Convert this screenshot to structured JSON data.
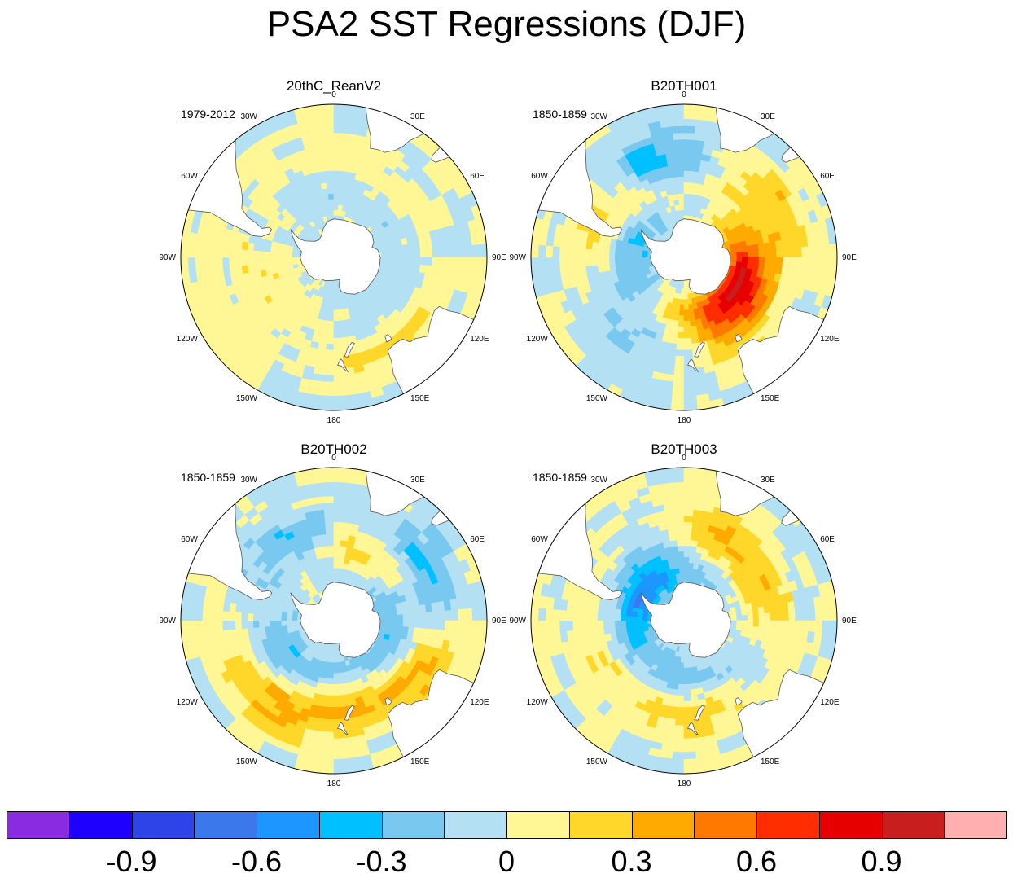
{
  "figure": {
    "title": "PSA2 SST Regressions (DJF)"
  },
  "colors": {
    "levels": [
      "#8a2be2",
      "#1e00ff",
      "#2e44e8",
      "#3a78ec",
      "#1e96ff",
      "#00c0ff",
      "#78c8f0",
      "#b4e0f4",
      "#fff796",
      "#ffd72a",
      "#ffaa00",
      "#ff7800",
      "#ff2d00",
      "#e60000",
      "#c81e1e",
      "#ffafaf"
    ],
    "land": "#ffffff",
    "coast": "#555555"
  },
  "colorbar": {
    "tick_labels": [
      "-0.9",
      "-0.6",
      "-0.3",
      "0",
      "0.3",
      "0.6",
      "0.9"
    ],
    "tick_values": [
      -0.9,
      -0.6,
      -0.3,
      0,
      0.3,
      0.6,
      0.9
    ],
    "bin_edges": [
      -1.05,
      -0.9,
      -0.75,
      -0.6,
      -0.45,
      -0.3,
      -0.15,
      0,
      0.15,
      0.3,
      0.45,
      0.6,
      0.75,
      0.9,
      1.05
    ]
  },
  "longitude_labels": [
    {
      "lon": 0,
      "text": "0"
    },
    {
      "lon": 30,
      "text": "30E"
    },
    {
      "lon": 60,
      "text": "60E"
    },
    {
      "lon": 90,
      "text": "90E"
    },
    {
      "lon": 120,
      "text": "120E"
    },
    {
      "lon": 150,
      "text": "150E"
    },
    {
      "lon": 180,
      "text": "180"
    },
    {
      "lon": -150,
      "text": "150W"
    },
    {
      "lon": -120,
      "text": "120W"
    },
    {
      "lon": -90,
      "text": "90W"
    },
    {
      "lon": -60,
      "text": "60W"
    },
    {
      "lon": -30,
      "text": "30W"
    }
  ],
  "chart_data": [
    {
      "type": "heatmap",
      "projection": "south-polar-stereographic",
      "title": "20thC_ReanV2",
      "period": "1979-2012",
      "variable": "SST regression on PSA2 index",
      "field": [
        {
          "lon": -100,
          "lat": -45,
          "value": 0.1
        },
        {
          "lon": -130,
          "lat": -55,
          "value": 0.1
        },
        {
          "lon": -20,
          "lat": -45,
          "value": 0.1
        },
        {
          "lon": 40,
          "lat": -45,
          "value": 0.1
        },
        {
          "lon": 10,
          "lat": -55,
          "value": -0.1
        },
        {
          "lon": 80,
          "lat": -55,
          "value": -0.1
        },
        {
          "lon": 150,
          "lat": -40,
          "value": 0.2
        },
        {
          "lon": 170,
          "lat": -55,
          "value": -0.1
        },
        {
          "lon": -40,
          "lat": -50,
          "value": -0.1
        }
      ]
    },
    {
      "type": "heatmap",
      "projection": "south-polar-stereographic",
      "title": "B20TH001",
      "period": "1850-1859",
      "variable": "SST regression on PSA2 index",
      "field": [
        {
          "lon": -20,
          "lat": -40,
          "value": -0.4
        },
        {
          "lon": 60,
          "lat": -40,
          "value": 0.3
        },
        {
          "lon": 100,
          "lat": -55,
          "value": 0.3
        },
        {
          "lon": 130,
          "lat": -60,
          "value": 0.7
        },
        {
          "lon": 155,
          "lat": -45,
          "value": 0.4
        },
        {
          "lon": -150,
          "lat": -40,
          "value": -0.1
        },
        {
          "lon": -110,
          "lat": -50,
          "value": -0.1
        },
        {
          "lon": -65,
          "lat": -45,
          "value": 0.3
        },
        {
          "lon": -90,
          "lat": -65,
          "value": -0.3
        },
        {
          "lon": 180,
          "lat": -45,
          "value": -0.2
        }
      ]
    },
    {
      "type": "heatmap",
      "projection": "south-polar-stereographic",
      "title": "B20TH002",
      "period": "1850-1859",
      "variable": "SST regression on PSA2 index",
      "field": [
        {
          "lon": -140,
          "lat": -40,
          "value": 0.35
        },
        {
          "lon": 60,
          "lat": -40,
          "value": -0.4
        },
        {
          "lon": 30,
          "lat": -50,
          "value": 0.3
        },
        {
          "lon": -30,
          "lat": -45,
          "value": -0.3
        },
        {
          "lon": -120,
          "lat": -60,
          "value": -0.3
        },
        {
          "lon": 170,
          "lat": -45,
          "value": 0.2
        },
        {
          "lon": 100,
          "lat": -60,
          "value": -0.3
        },
        {
          "lon": 120,
          "lat": -40,
          "value": 0.3
        }
      ]
    },
    {
      "type": "heatmap",
      "projection": "south-polar-stereographic",
      "title": "B20TH003",
      "period": "1850-1859",
      "variable": "SST regression on PSA2 index",
      "field": [
        {
          "lon": 175,
          "lat": -45,
          "value": 0.3
        },
        {
          "lon": -60,
          "lat": -65,
          "value": -0.5
        },
        {
          "lon": 80,
          "lat": -50,
          "value": 0.2
        },
        {
          "lon": -120,
          "lat": -50,
          "value": 0.2
        },
        {
          "lon": -150,
          "lat": -55,
          "value": -0.3
        },
        {
          "lon": 30,
          "lat": -45,
          "value": 0.3
        },
        {
          "lon": 130,
          "lat": -55,
          "value": -0.2
        },
        {
          "lon": -20,
          "lat": -55,
          "value": -0.2
        }
      ]
    }
  ]
}
